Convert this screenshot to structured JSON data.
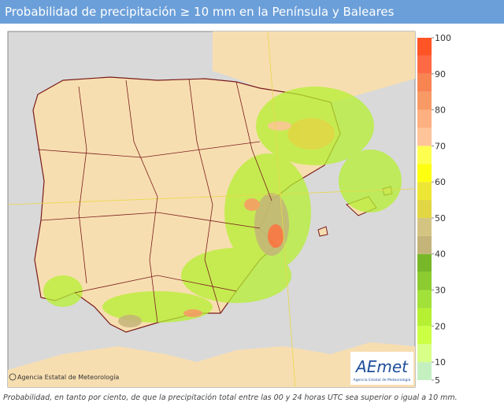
{
  "header": {
    "title": "Probabilidad de precipitación ≥ 10 mm en la Península y Baleares"
  },
  "legend": {
    "ticks": [
      5,
      10,
      20,
      30,
      40,
      50,
      60,
      70,
      80,
      90,
      100
    ],
    "bands": [
      5,
      10,
      15,
      20,
      25,
      30,
      35,
      40,
      45,
      50,
      55,
      60,
      65,
      70,
      75,
      80,
      85,
      90,
      95,
      100
    ],
    "colors": [
      "#c4f0c0",
      "#d8ff88",
      "#ccff44",
      "#b6f032",
      "#a2e03a",
      "#8ccc30",
      "#78b828",
      "#c4b47a",
      "#d4c482",
      "#e2d644",
      "#eee634",
      "#ffff10",
      "#ffff50",
      "#ffc49a",
      "#ffb080",
      "#f89a66",
      "#f88452",
      "#ff6a44",
      "#ff5426"
    ]
  },
  "map": {
    "credit": "Agencia Estatal de Meteorología",
    "logo": "AEmet",
    "logo_sub": "Agencia Estatal de Meteorología"
  },
  "footer": {
    "note": "Probabilidad, en tanto por ciento, de que la precipitación total entre las 00 y 24 horas UTC sea superior o igual a 10 mm."
  }
}
